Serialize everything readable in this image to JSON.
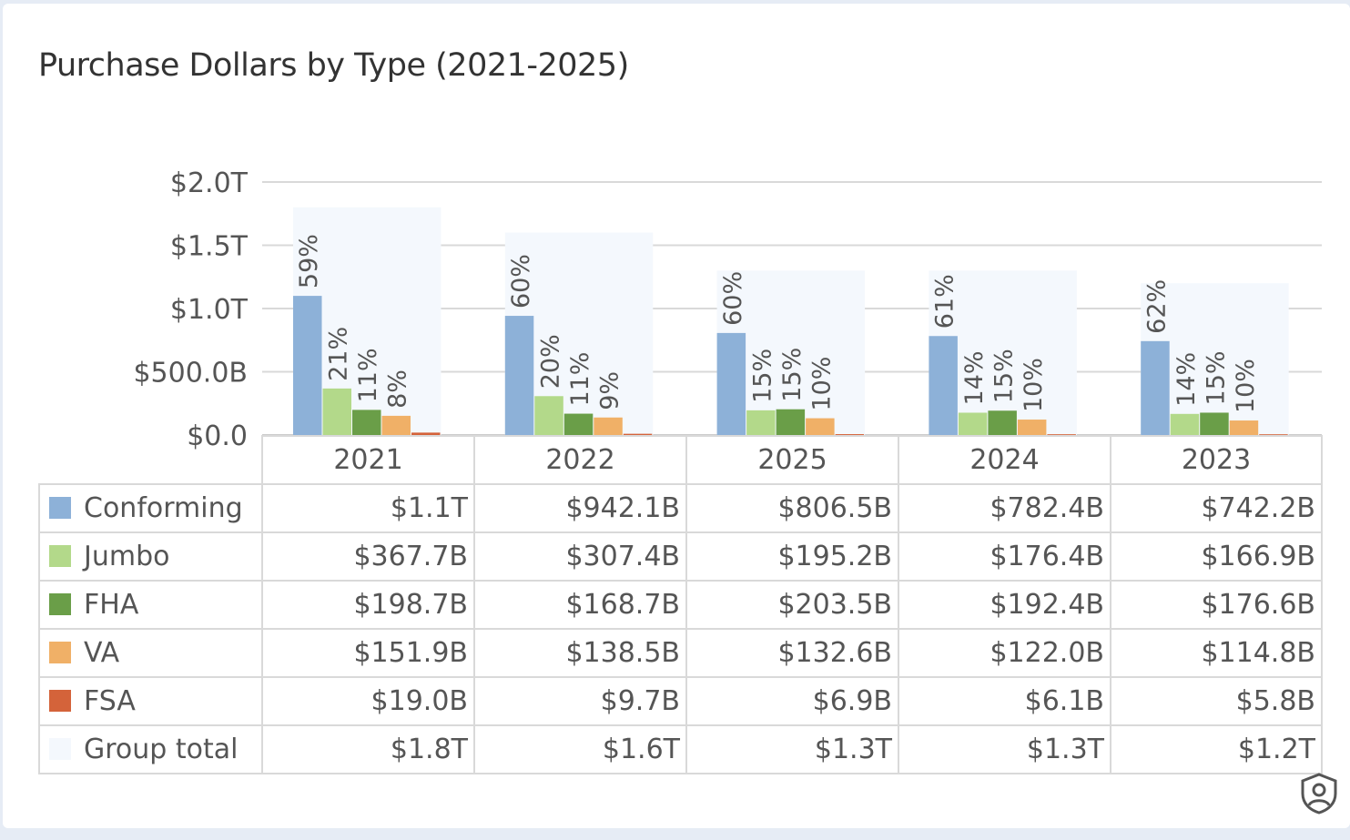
{
  "title": "Purchase Dollars by Type (2021-2025)",
  "chart_data": {
    "type": "bar",
    "categories": [
      "2021",
      "2022",
      "2025",
      "2024",
      "2023"
    ],
    "y_ticks": [
      "$0.0",
      "$500.0B",
      "$1.0T",
      "$1.5T",
      "$2.0T"
    ],
    "ylim": [
      0,
      2000
    ],
    "value_unit": "billions of dollars",
    "grid": true,
    "series": [
      {
        "name": "Conforming",
        "color": "#8db1d8",
        "values": [
          1100,
          942.1,
          806.5,
          782.4,
          742.2
        ],
        "labels": [
          "$1.1T",
          "$942.1B",
          "$806.5B",
          "$782.4B",
          "$742.2B"
        ],
        "pct_labels": [
          "59%",
          "60%",
          "60%",
          "61%",
          "62%"
        ]
      },
      {
        "name": "Jumbo",
        "color": "#b3d98a",
        "values": [
          367.7,
          307.4,
          195.2,
          176.4,
          166.9
        ],
        "labels": [
          "$367.7B",
          "$307.4B",
          "$195.2B",
          "$176.4B",
          "$166.9B"
        ],
        "pct_labels": [
          "21%",
          "20%",
          "15%",
          "14%",
          "14%"
        ]
      },
      {
        "name": "FHA",
        "color": "#6a9e48",
        "values": [
          198.7,
          168.7,
          203.5,
          192.4,
          176.6
        ],
        "labels": [
          "$198.7B",
          "$168.7B",
          "$203.5B",
          "$192.4B",
          "$176.6B"
        ],
        "pct_labels": [
          "11%",
          "11%",
          "15%",
          "15%",
          "15%"
        ]
      },
      {
        "name": "VA",
        "color": "#f0b067",
        "values": [
          151.9,
          138.5,
          132.6,
          122.0,
          114.8
        ],
        "labels": [
          "$151.9B",
          "$138.5B",
          "$132.6B",
          "$122.0B",
          "$114.8B"
        ],
        "pct_labels": [
          "8%",
          "9%",
          "10%",
          "10%",
          "10%"
        ]
      },
      {
        "name": "FSA",
        "color": "#d4633a",
        "values": [
          19.0,
          9.7,
          6.9,
          6.1,
          5.8
        ],
        "labels": [
          "$19.0B",
          "$9.7B",
          "$6.9B",
          "$6.1B",
          "$5.8B"
        ],
        "pct_labels": [
          "",
          "",
          "",
          "",
          ""
        ]
      }
    ],
    "group_total": {
      "name": "Group total",
      "color": "#f4f8fd",
      "values": [
        1800,
        1600,
        1300,
        1300,
        1200
      ],
      "labels": [
        "$1.8T",
        "$1.6T",
        "$1.3T",
        "$1.3T",
        "$1.2T"
      ]
    }
  },
  "icons": {
    "shield": "shield-user-icon"
  }
}
